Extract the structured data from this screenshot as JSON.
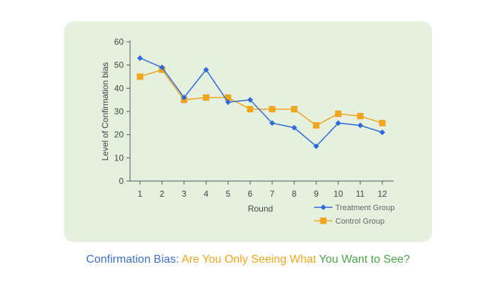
{
  "caption": {
    "part1": "Confirmation Bias",
    "part2": ": ",
    "part3": "Are You Only Seeing What",
    "part4": " You Want to See?",
    "colors": [
      "#3f6fc9",
      "#3f6fc9",
      "#f0a51e",
      "#4aa34a"
    ]
  },
  "chart_data": {
    "type": "line",
    "categories": [
      "1",
      "2",
      "3",
      "4",
      "5",
      "6",
      "7",
      "8",
      "9",
      "10",
      "11",
      "12"
    ],
    "series": [
      {
        "name": "Treatment Group",
        "color": "#2f6bd8",
        "marker": "diamond",
        "values": [
          53,
          49,
          36,
          48,
          34,
          35,
          25,
          23,
          15,
          25,
          24,
          21
        ]
      },
      {
        "name": "Control Group",
        "color": "#f0a51e",
        "marker": "square",
        "values": [
          45,
          48,
          35,
          36,
          36,
          31,
          31,
          31,
          24,
          29,
          28,
          25
        ]
      }
    ],
    "xlabel": "Round",
    "ylabel": "Level of Confirmation bias",
    "ylim": [
      0,
      60
    ],
    "yticks": [
      "0",
      "10",
      "20",
      "30",
      "40",
      "50",
      "60"
    ],
    "grid": false,
    "legend_position": "bottom-right"
  }
}
